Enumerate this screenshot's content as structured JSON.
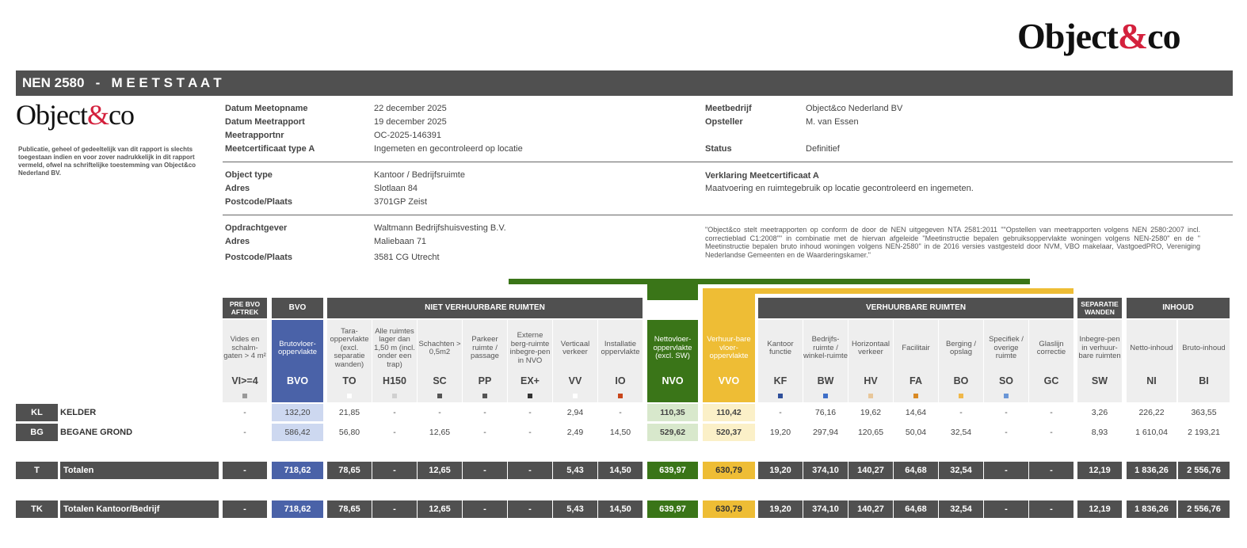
{
  "brand": {
    "name_pre": "Object",
    "name_amp": "&",
    "name_post": "co",
    "accent": "#d4213d"
  },
  "title": {
    "nen": "NEN 2580",
    "sep": "-",
    "meetstaat": "M E E T S T A A T"
  },
  "disclaimer": "Publicatie, geheel of gedeeltelijk van dit rapport is slechts toegestaan indien en voor zover nadrukkelijk in dit rapport vermeld, ofwel na schriftelijke toestemming van Object&co Nederland BV.",
  "info": {
    "left": [
      {
        "label": "Datum Meetopname",
        "value": "22 december 2025"
      },
      {
        "label": "Datum Meetrapport",
        "value": "19 december 2025"
      },
      {
        "label": "Meetrapportnr",
        "value": "OC-2025-146391"
      },
      {
        "label": "Meetcertificaat type A",
        "value": "Ingemeten en gecontroleerd op locatie"
      }
    ],
    "right": [
      {
        "label": "Meetbedrijf",
        "value": "Object&co Nederland BV"
      },
      {
        "label": "Opsteller",
        "value": "M. van Essen"
      },
      {
        "label": "Status",
        "value": "Definitief"
      }
    ],
    "object": [
      {
        "label": "Object type",
        "value": "Kantoor / Bedrijfsruimte"
      },
      {
        "label": "Adres",
        "value": "Slotlaan 84"
      },
      {
        "label": "Postcode/Plaats",
        "value": "3701GP Zeist"
      }
    ],
    "verklaring_label": "Verklaring Meetcertificaat A",
    "verklaring_value": "Maatvoering en ruimtegebruik op locatie gecontroleerd en ingemeten.",
    "opdracht": [
      {
        "label": "Opdrachtgever",
        "value": "Waltmann Bedrijfshuisvesting B.V."
      },
      {
        "label": "Adres",
        "value": "Maliebaan 71"
      },
      {
        "label": "Postcode/Plaats",
        "value": "3581 CG Utrecht"
      }
    ],
    "quote": "\"Object&co stelt meetrapporten op conform de door de NEN uitgegeven NTA 2581:2011 \"\"Opstellen van meetrapporten volgens NEN  2580:2007 incl. correctieblad C1:2008\"\"  in combinatie met de hiervan afgeleide  \"Meetinstructie bepalen gebruiksoppervlakte  woningen  volgens  NEN-2580\"  en  de  \" Meetinstructie bepalen  bruto  inhoud  woningen volgens NEN-2580\"  in  de 2016 versies  vastgesteld door NVM, VBO makelaar, VastgoedPRO, Vereniging  Nederlandse Gemeenten en de Waarderingskamer.\""
  },
  "groups": {
    "prebvo": "PRE BVO AFTREK",
    "bvo": "BVO",
    "niet": "NIET VERHUURBARE RUIMTEN",
    "verh": "VERHUURBARE RUIMTEN",
    "sep": "SEPARATIE WANDEN",
    "inhoud": "INHOUD"
  },
  "columns": [
    {
      "desc": "Vides en schalm-gaten > 4 m²",
      "code": "VI>=4",
      "sq": "#999999"
    },
    {
      "desc": "Brutovloer-oppervlakte",
      "code": "BVO",
      "sq": ""
    },
    {
      "desc": "Tara-oppervlakte (excl. separatie wanden)",
      "code": "TO",
      "sq": "#ffffff"
    },
    {
      "desc": "Alle ruimtes lager dan 1,50 m (incl. onder een trap)",
      "code": "H150",
      "sq": "#d0d0d0"
    },
    {
      "desc": "Schachten > 0,5m2",
      "code": "SC",
      "sq": "#555555"
    },
    {
      "desc": "Parkeer ruimte / passage",
      "code": "PP",
      "sq": "#555555"
    },
    {
      "desc": "Externe berg-ruimte inbegre-pen in NVO",
      "code": "EX+",
      "sq": "#333333"
    },
    {
      "desc": "Verticaal verkeer",
      "code": "VV",
      "sq": "#ffffff"
    },
    {
      "desc": "Installatie oppervlakte",
      "code": "IO",
      "sq": "#c8461a"
    },
    {
      "desc": "Nettovloer-oppervlakte (excl. SW)",
      "code": "NVO",
      "sq": ""
    },
    {
      "desc": "Verhuur-bare vloer-oppervlakte",
      "code": "VVO",
      "sq": ""
    },
    {
      "desc": "Kantoor functie",
      "code": "KF",
      "sq": "#2f4f9a"
    },
    {
      "desc": "Bedrijfs-ruimte / winkel-ruimte",
      "code": "BW",
      "sq": "#3e6fc8"
    },
    {
      "desc": "Horizontaal verkeer",
      "code": "HV",
      "sq": "#e8c79a"
    },
    {
      "desc": "Facilitair",
      "code": "FA",
      "sq": "#d98a25"
    },
    {
      "desc": "Berging / opslag",
      "code": "BO",
      "sq": "#f0b84a"
    },
    {
      "desc": "Specifiek / overige ruimte",
      "code": "SO",
      "sq": "#6a96d6"
    },
    {
      "desc": "Glaslijn correctie",
      "code": "GC",
      "sq": ""
    },
    {
      "desc": "Inbegre-pen in verhuur-bare ruimten",
      "code": "SW",
      "sq": ""
    },
    {
      "desc": "Netto-inhoud",
      "code": "NI",
      "sq": ""
    },
    {
      "desc": "Bruto-inhoud",
      "code": "BI",
      "sq": ""
    }
  ],
  "rows": [
    {
      "code": "KL",
      "name": "KELDER",
      "values": [
        "-",
        "132,20",
        "21,85",
        "-",
        "-",
        "-",
        "-",
        "2,94",
        "-",
        "110,35",
        "110,42",
        "-",
        "76,16",
        "19,62",
        "14,64",
        "-",
        "-",
        "-",
        "3,26",
        "226,22",
        "363,55"
      ]
    },
    {
      "code": "BG",
      "name": "BEGANE GROND",
      "values": [
        "-",
        "586,42",
        "56,80",
        "-",
        "12,65",
        "-",
        "-",
        "2,49",
        "14,50",
        "529,62",
        "520,37",
        "19,20",
        "297,94",
        "120,65",
        "50,04",
        "32,54",
        "-",
        "-",
        "8,93",
        "1 610,04",
        "2 193,21"
      ]
    }
  ],
  "totals": [
    {
      "code": "T",
      "name": "Totalen",
      "values": [
        "-",
        "718,62",
        "78,65",
        "-",
        "12,65",
        "-",
        "-",
        "5,43",
        "14,50",
        "639,97",
        "630,79",
        "19,20",
        "374,10",
        "140,27",
        "64,68",
        "32,54",
        "-",
        "-",
        "12,19",
        "1 836,26",
        "2 556,76"
      ]
    },
    {
      "code": "TK",
      "name": "Totalen Kantoor/Bedrijf",
      "values": [
        "-",
        "718,62",
        "78,65",
        "-",
        "12,65",
        "-",
        "-",
        "5,43",
        "14,50",
        "639,97",
        "630,79",
        "19,20",
        "374,10",
        "140,27",
        "64,68",
        "32,54",
        "-",
        "-",
        "12,19",
        "1 836,26",
        "2 556,76"
      ]
    }
  ],
  "colors": {
    "bvo": "#4a62a8",
    "nvo": "#3a7518",
    "vvo": "#eebd35",
    "bar": "#505050"
  }
}
